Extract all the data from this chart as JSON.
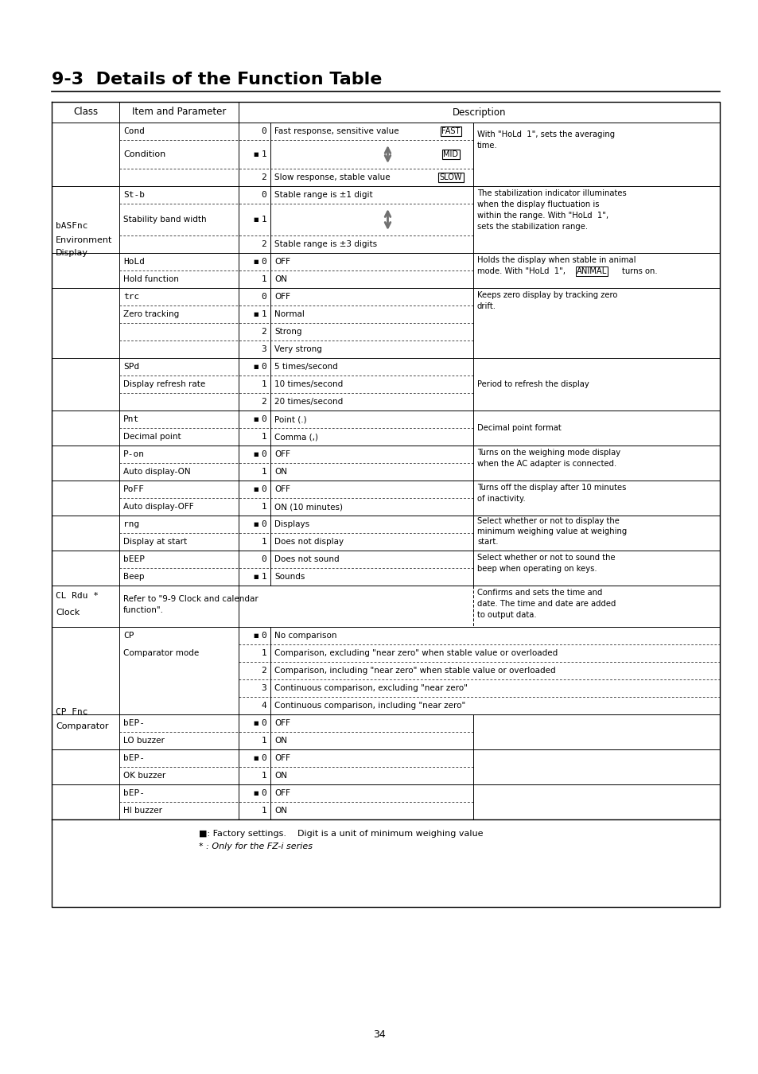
{
  "title": "9-3  Details of the Function Table",
  "page_number": "34",
  "footnote1": "■: Factory settings.    Digit is a unit of minimum weighing value",
  "footnote2": "* : Only for the FZ-i series",
  "bg_color": "#ffffff"
}
